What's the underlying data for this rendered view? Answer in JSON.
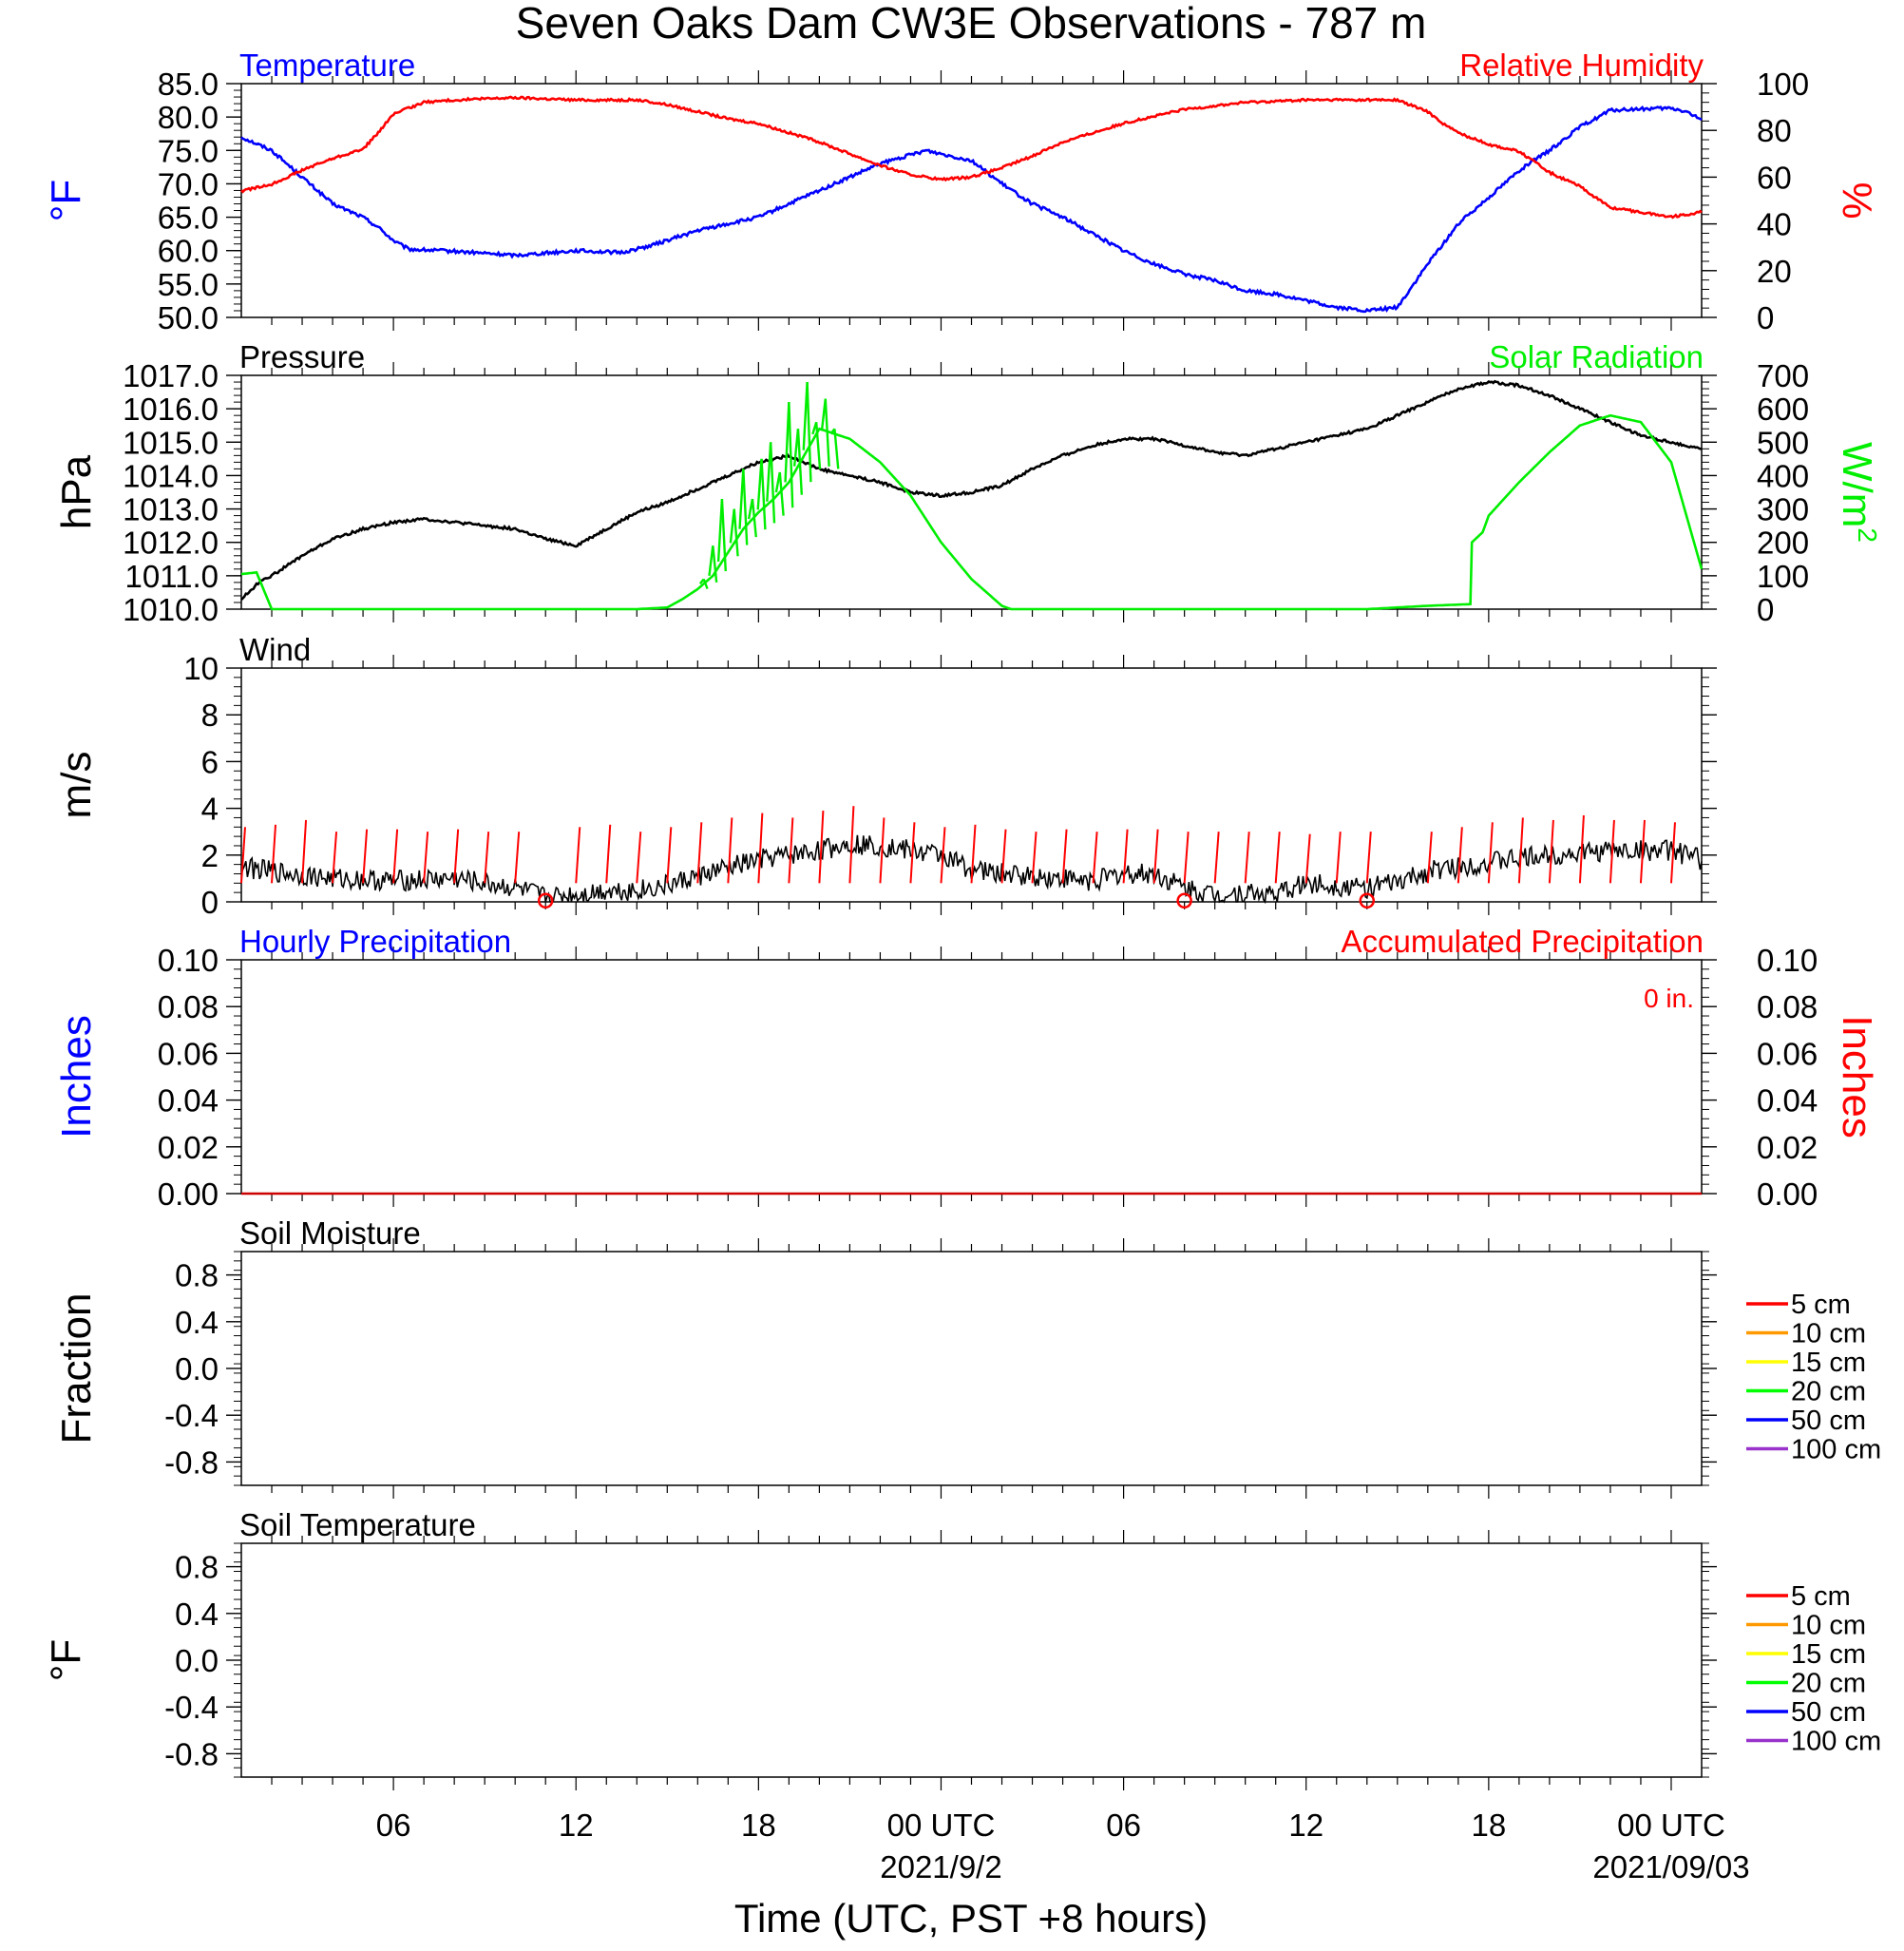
{
  "figure": {
    "title": "Seven Oaks Dam CW3E Observations - 787 m",
    "xlabel": "Time (UTC, PST +8 hours)",
    "x_ticks": [
      {
        "h": 6,
        "label": "06"
      },
      {
        "h": 12,
        "label": "12"
      },
      {
        "h": 18,
        "label": "18"
      },
      {
        "h": 24,
        "label": "00 UTC"
      },
      {
        "h": 30,
        "label": "06"
      },
      {
        "h": 36,
        "label": "12"
      },
      {
        "h": 42,
        "label": "18"
      },
      {
        "h": 48,
        "label": "00 UTC"
      }
    ],
    "date_labels": [
      {
        "h": 24,
        "label": "2021/9/2"
      },
      {
        "h": 48,
        "label": "2021/09/03"
      }
    ],
    "x_range_hours": [
      1,
      49
    ]
  },
  "chart_data": [
    {
      "id": "temp-rh",
      "type": "line",
      "left_title": "Temperature",
      "right_title": "Relative Humidity",
      "ylabel_left": "°F",
      "ylabel_right": "%",
      "left_color": "#0000ff",
      "right_color": "#ff0000",
      "ylim": [
        50,
        85
      ],
      "yticks": [
        "50.0",
        "55.0",
        "60.0",
        "65.0",
        "70.0",
        "75.0",
        "80.0",
        "85.0"
      ],
      "ylim_right": [
        0,
        100
      ],
      "yticks_right": [
        "0",
        "20",
        "40",
        "60",
        "80",
        "100"
      ],
      "series": [
        {
          "name": "Temperature",
          "axis": "left",
          "color": "#0000ff",
          "noise": 0.25,
          "x": [
            1,
            2,
            3,
            4,
            5,
            5.5,
            6,
            6.5,
            8,
            10,
            12,
            13.5,
            14.5,
            16,
            18,
            20,
            22,
            23.5,
            25,
            26,
            27,
            28,
            29,
            30,
            31,
            32,
            33,
            34,
            35,
            36,
            37,
            38,
            39,
            40,
            40.5,
            41,
            42,
            43,
            44,
            45,
            46,
            47,
            48,
            48.5,
            49
          ],
          "y": [
            77,
            75,
            71,
            67,
            65,
            63.5,
            61.5,
            60.2,
            59.9,
            59.3,
            60,
            59.7,
            60.8,
            63,
            65,
            69,
            73,
            75,
            73.5,
            70,
            67,
            65,
            62.5,
            60,
            58,
            56.5,
            55.5,
            54,
            53.5,
            52.5,
            51.5,
            51,
            51.5,
            58,
            61,
            64,
            68,
            72,
            75,
            78.5,
            81,
            81.2,
            81.3,
            80.8,
            79.5
          ]
        },
        {
          "name": "Relative Humidity",
          "axis": "right",
          "color": "#ff0000",
          "noise": 0.5,
          "x": [
            1,
            2,
            3,
            4,
            5,
            5.5,
            6,
            7,
            8,
            10,
            12,
            13,
            14,
            15,
            16,
            17,
            18,
            19,
            20,
            21,
            22,
            23,
            24,
            25,
            26,
            27,
            28,
            29,
            30,
            31,
            32,
            34,
            36,
            38,
            39,
            40,
            40.5,
            41,
            42,
            43,
            44,
            45,
            46,
            47,
            48,
            49
          ],
          "y": [
            54,
            57,
            63,
            68,
            72,
            79,
            87,
            92,
            93,
            94,
            93,
            93,
            93,
            91,
            88,
            85,
            83,
            79,
            75,
            70,
            65,
            61,
            59,
            60,
            64,
            69,
            75,
            79,
            83,
            86,
            89,
            92,
            93,
            93,
            93,
            88,
            83,
            79,
            74,
            71,
            62,
            56,
            47,
            45,
            43,
            45
          ]
        }
      ]
    },
    {
      "id": "pressure-solar",
      "type": "line",
      "left_title": "Pressure",
      "right_title": "Solar Radiation",
      "ylabel_left": "hPa",
      "ylabel_right": "W/m",
      "ylabel_right_sup": "2",
      "left_color": "#000000",
      "right_color": "#00ee00",
      "ylim": [
        1010,
        1017
      ],
      "yticks": [
        "1010.0",
        "1011.0",
        "1012.0",
        "1013.0",
        "1014.0",
        "1015.0",
        "1016.0",
        "1017.0"
      ],
      "ylim_right": [
        0,
        700
      ],
      "yticks_right": [
        "0",
        "100",
        "200",
        "300",
        "400",
        "500",
        "600",
        "700"
      ],
      "series": [
        {
          "name": "Pressure",
          "axis": "left",
          "color": "#000000",
          "noise": 0.04,
          "x": [
            1,
            1.7,
            2,
            3,
            4,
            5,
            6,
            7,
            8,
            9,
            10,
            11,
            12,
            13,
            14,
            15,
            16,
            17,
            18,
            19,
            20,
            21,
            22,
            23,
            24,
            25,
            26,
            27,
            28,
            29,
            30,
            31,
            32,
            33,
            34,
            35,
            36,
            37,
            38,
            39,
            40,
            41,
            42,
            43,
            44,
            45,
            46,
            47,
            48,
            49
          ],
          "y": [
            1010.3,
            1010.9,
            1011.0,
            1011.6,
            1012.1,
            1012.4,
            1012.6,
            1012.7,
            1012.6,
            1012.5,
            1012.4,
            1012.1,
            1011.9,
            1012.4,
            1012.9,
            1013.2,
            1013.6,
            1014.0,
            1014.4,
            1014.6,
            1014.2,
            1014.0,
            1013.8,
            1013.5,
            1013.4,
            1013.5,
            1013.7,
            1014.2,
            1014.6,
            1014.9,
            1015.1,
            1015.1,
            1014.9,
            1014.7,
            1014.6,
            1014.8,
            1015.0,
            1015.2,
            1015.4,
            1015.8,
            1016.2,
            1016.6,
            1016.8,
            1016.7,
            1016.4,
            1016.0,
            1015.6,
            1015.2,
            1015.0,
            1014.8
          ],
          "spikes": []
        },
        {
          "name": "Solar Radiation",
          "axis": "right",
          "color": "#00ee00",
          "noise": 0,
          "x": [
            1,
            1.5,
            2,
            3,
            14,
            15,
            15.5,
            16,
            16.5,
            17,
            17.5,
            18,
            18.5,
            19,
            19.5,
            20,
            21,
            22,
            23,
            24,
            25,
            26,
            26.3,
            27,
            30,
            34,
            38,
            40,
            41.4,
            41.45,
            41.8,
            42,
            43,
            44,
            45,
            46,
            47,
            47.5,
            48,
            49
          ],
          "y": [
            105,
            110,
            0,
            0,
            0,
            5,
            30,
            60,
            100,
            170,
            240,
            290,
            330,
            380,
            460,
            540,
            510,
            440,
            340,
            200,
            90,
            10,
            0,
            0,
            0,
            0,
            0,
            10,
            15,
            200,
            230,
            280,
            380,
            470,
            550,
            580,
            560,
            500,
            440,
            120
          ],
          "spikes": [
            {
              "x": 16.2,
              "y": 90
            },
            {
              "x": 16.5,
              "y": 190
            },
            {
              "x": 16.8,
              "y": 330
            },
            {
              "x": 17.2,
              "y": 300
            },
            {
              "x": 17.5,
              "y": 420
            },
            {
              "x": 17.8,
              "y": 330
            },
            {
              "x": 18.1,
              "y": 450
            },
            {
              "x": 18.4,
              "y": 500
            },
            {
              "x": 18.7,
              "y": 410
            },
            {
              "x": 19.0,
              "y": 620
            },
            {
              "x": 19.3,
              "y": 540
            },
            {
              "x": 19.6,
              "y": 680
            },
            {
              "x": 19.9,
              "y": 560
            },
            {
              "x": 20.2,
              "y": 630
            },
            {
              "x": 20.5,
              "y": 540
            }
          ]
        }
      ]
    },
    {
      "id": "wind",
      "type": "line",
      "left_title": "Wind",
      "ylabel_left": "m/s",
      "left_color": "#000000",
      "ylim": [
        0,
        10
      ],
      "yticks": [
        "0",
        "2",
        "4",
        "6",
        "8",
        "10"
      ],
      "series": [
        {
          "name": "Wind",
          "axis": "left",
          "color": "#000000",
          "noise": 0.45,
          "x": [
            1,
            2,
            4,
            6,
            8,
            10,
            11,
            12,
            13,
            14,
            15,
            16,
            18,
            20,
            21,
            22,
            23,
            24,
            25,
            26,
            28,
            29,
            30,
            31,
            32,
            33,
            34,
            35,
            36,
            37,
            38,
            39,
            40,
            42,
            44,
            46,
            48,
            49
          ],
          "y": [
            1.5,
            1.3,
            1.0,
            0.9,
            1.0,
            0.6,
            0.2,
            0.3,
            0.5,
            0.5,
            0.7,
            1.1,
            1.8,
            2.2,
            2.5,
            2.4,
            2.2,
            2.0,
            1.4,
            1.2,
            1.0,
            0.9,
            1.2,
            1.2,
            0.6,
            0.3,
            0.4,
            0.3,
            0.8,
            0.7,
            0.6,
            0.8,
            1.3,
            1.7,
            2.0,
            2.2,
            2.2,
            1.8
          ]
        }
      ],
      "barbs_hours": [
        1,
        2,
        3,
        4,
        5,
        6,
        7,
        8,
        9,
        10,
        12,
        13,
        14,
        15,
        16,
        17,
        18,
        19,
        20,
        21,
        22,
        23,
        24,
        25,
        26,
        27,
        28,
        29,
        30,
        31,
        32,
        33,
        34,
        35,
        36,
        37,
        38,
        40,
        41,
        42,
        43,
        44,
        45,
        46,
        47,
        48
      ],
      "barbs_len": [
        3.2,
        3.3,
        3.5,
        3.0,
        3.1,
        3.1,
        3.0,
        3.1,
        3.0,
        3.0,
        3.2,
        3.3,
        3.0,
        3.2,
        3.4,
        3.6,
        3.8,
        3.6,
        3.9,
        4.1,
        3.6,
        3.4,
        3.2,
        3.3,
        3.1,
        3.0,
        3.1,
        3.0,
        3.1,
        3.1,
        3.0,
        3.0,
        3.0,
        3.0,
        2.9,
        3.0,
        3.0,
        3.0,
        3.2,
        3.4,
        3.6,
        3.5,
        3.7,
        3.5,
        3.5,
        3.4
      ],
      "calm_hours": [
        11,
        32,
        38
      ]
    },
    {
      "id": "precip",
      "type": "line",
      "left_title": "Hourly Precipitation",
      "right_title": "Accumulated Precipitation",
      "right_note": "0 in.",
      "ylabel_left": "Inches",
      "ylabel_right": "Inches",
      "left_color": "#0000ff",
      "right_color": "#ff0000",
      "ylim": [
        0,
        0.1
      ],
      "yticks": [
        "0.00",
        "0.02",
        "0.04",
        "0.06",
        "0.08",
        "0.10"
      ],
      "yticks_right": [
        "0.00",
        "0.02",
        "0.04",
        "0.06",
        "0.08",
        "0.10"
      ],
      "series": [
        {
          "name": "Accumulated Precipitation",
          "axis": "left",
          "color": "#cc0000",
          "noise": 0,
          "x": [
            1,
            49
          ],
          "y": [
            0,
            0
          ]
        }
      ]
    },
    {
      "id": "soil-moisture",
      "type": "line",
      "left_title": "Soil Moisture",
      "ylabel_left": "Fraction",
      "left_color": "#000000",
      "ylim": [
        -1,
        1
      ],
      "yticks": [
        "-0.8",
        "-0.4",
        "0.0",
        "0.4",
        "0.8"
      ],
      "ytick_values": [
        -0.8,
        -0.4,
        0,
        0.4,
        0.8
      ],
      "legend": [
        {
          "label": "5 cm",
          "color": "#ff0000"
        },
        {
          "label": "10 cm",
          "color": "#ff9900"
        },
        {
          "label": "15 cm",
          "color": "#ffff00"
        },
        {
          "label": "20 cm",
          "color": "#00ff00"
        },
        {
          "label": "50 cm",
          "color": "#0000ff"
        },
        {
          "label": "100 cm",
          "color": "#9933cc"
        }
      ],
      "series": []
    },
    {
      "id": "soil-temperature",
      "type": "line",
      "left_title": "Soil Temperature",
      "ylabel_left": "°F",
      "left_color": "#000000",
      "ylim": [
        -1,
        1
      ],
      "yticks": [
        "-0.8",
        "-0.4",
        "0.0",
        "0.4",
        "0.8"
      ],
      "ytick_values": [
        -0.8,
        -0.4,
        0,
        0.4,
        0.8
      ],
      "legend": [
        {
          "label": "5 cm",
          "color": "#ff0000"
        },
        {
          "label": "10 cm",
          "color": "#ff9900"
        },
        {
          "label": "15 cm",
          "color": "#ffff00"
        },
        {
          "label": "20 cm",
          "color": "#00ff00"
        },
        {
          "label": "50 cm",
          "color": "#0000ff"
        },
        {
          "label": "100 cm",
          "color": "#9933cc"
        }
      ],
      "series": []
    }
  ]
}
